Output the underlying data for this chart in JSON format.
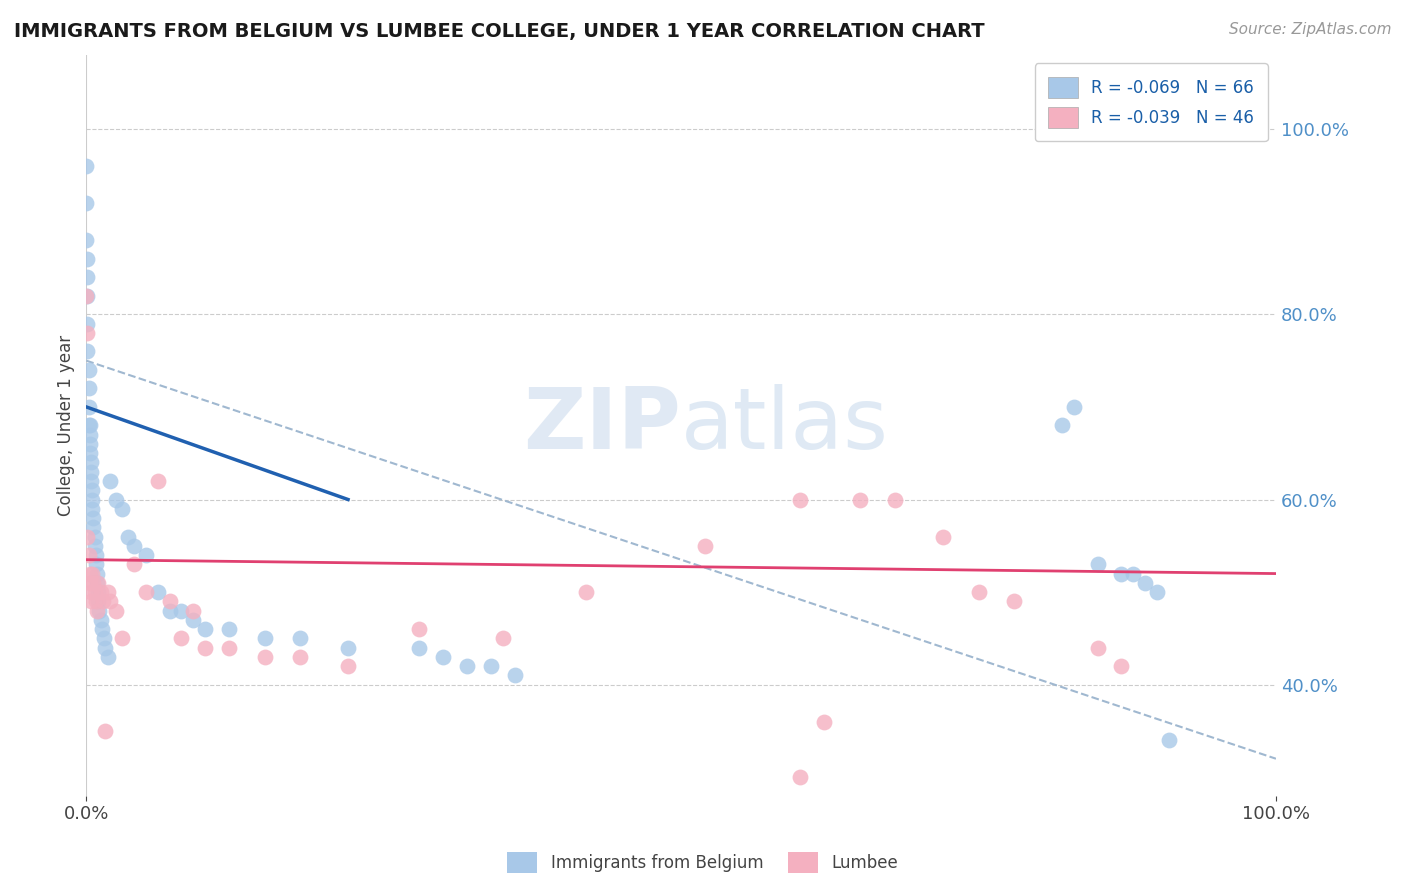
{
  "title": "IMMIGRANTS FROM BELGIUM VS LUMBEE COLLEGE, UNDER 1 YEAR CORRELATION CHART",
  "source_text": "Source: ZipAtlas.com",
  "ylabel": "College, Under 1 year",
  "legend_labels": [
    "Immigrants from Belgium",
    "Lumbee"
  ],
  "blue_R": -0.069,
  "blue_N": 66,
  "pink_R": -0.039,
  "pink_N": 46,
  "blue_color": "#a8c8e8",
  "pink_color": "#f4b0c0",
  "blue_line_color": "#2060b0",
  "pink_line_color": "#e04070",
  "dashed_line_color": "#a0b8d0",
  "watermark_color": "#c8d8ec",
  "yticks": [
    0.4,
    0.6,
    0.8,
    1.0
  ],
  "xticks": [
    0.0,
    1.0
  ],
  "xlim": [
    0.0,
    1.0
  ],
  "ylim": [
    0.28,
    1.08
  ],
  "blue_scatter_x": [
    0.0,
    0.0,
    0.0,
    0.001,
    0.001,
    0.001,
    0.001,
    0.001,
    0.002,
    0.002,
    0.002,
    0.002,
    0.003,
    0.003,
    0.003,
    0.003,
    0.004,
    0.004,
    0.004,
    0.005,
    0.005,
    0.005,
    0.006,
    0.006,
    0.007,
    0.007,
    0.008,
    0.008,
    0.009,
    0.009,
    0.01,
    0.01,
    0.011,
    0.012,
    0.013,
    0.015,
    0.016,
    0.018,
    0.02,
    0.025,
    0.03,
    0.035,
    0.04,
    0.05,
    0.06,
    0.07,
    0.08,
    0.09,
    0.1,
    0.12,
    0.15,
    0.18,
    0.22,
    0.28,
    0.3,
    0.32,
    0.34,
    0.36,
    0.82,
    0.83,
    0.85,
    0.87,
    0.88,
    0.89,
    0.9,
    0.91
  ],
  "blue_scatter_y": [
    0.96,
    0.92,
    0.88,
    0.86,
    0.84,
    0.82,
    0.79,
    0.76,
    0.74,
    0.72,
    0.7,
    0.68,
    0.68,
    0.67,
    0.66,
    0.65,
    0.64,
    0.63,
    0.62,
    0.61,
    0.6,
    0.59,
    0.58,
    0.57,
    0.56,
    0.55,
    0.54,
    0.53,
    0.52,
    0.51,
    0.5,
    0.49,
    0.48,
    0.47,
    0.46,
    0.45,
    0.44,
    0.43,
    0.62,
    0.6,
    0.59,
    0.56,
    0.55,
    0.54,
    0.5,
    0.48,
    0.48,
    0.47,
    0.46,
    0.46,
    0.45,
    0.45,
    0.44,
    0.44,
    0.43,
    0.42,
    0.42,
    0.41,
    0.68,
    0.7,
    0.53,
    0.52,
    0.52,
    0.51,
    0.5,
    0.34
  ],
  "pink_scatter_x": [
    0.0,
    0.001,
    0.001,
    0.002,
    0.003,
    0.003,
    0.004,
    0.004,
    0.005,
    0.006,
    0.007,
    0.008,
    0.009,
    0.01,
    0.012,
    0.014,
    0.016,
    0.018,
    0.02,
    0.025,
    0.03,
    0.04,
    0.05,
    0.06,
    0.07,
    0.08,
    0.09,
    0.1,
    0.12,
    0.15,
    0.18,
    0.22,
    0.28,
    0.35,
    0.42,
    0.52,
    0.6,
    0.65,
    0.68,
    0.72,
    0.75,
    0.78,
    0.85,
    0.87,
    0.6,
    0.62
  ],
  "pink_scatter_y": [
    0.82,
    0.78,
    0.56,
    0.54,
    0.52,
    0.51,
    0.5,
    0.49,
    0.52,
    0.51,
    0.5,
    0.49,
    0.48,
    0.51,
    0.5,
    0.49,
    0.35,
    0.5,
    0.49,
    0.48,
    0.45,
    0.53,
    0.5,
    0.62,
    0.49,
    0.45,
    0.48,
    0.44,
    0.44,
    0.43,
    0.43,
    0.42,
    0.46,
    0.45,
    0.5,
    0.55,
    0.6,
    0.6,
    0.6,
    0.56,
    0.5,
    0.49,
    0.44,
    0.42,
    0.3,
    0.36
  ],
  "blue_trend_x": [
    0.0,
    0.22
  ],
  "blue_trend_y_start": 0.7,
  "blue_trend_y_end": 0.6,
  "pink_trend_x": [
    0.0,
    1.0
  ],
  "pink_trend_y_start": 0.535,
  "pink_trend_y_end": 0.52,
  "dash_trend_x": [
    0.0,
    1.0
  ],
  "dash_trend_y_start": 0.75,
  "dash_trend_y_end": 0.32
}
